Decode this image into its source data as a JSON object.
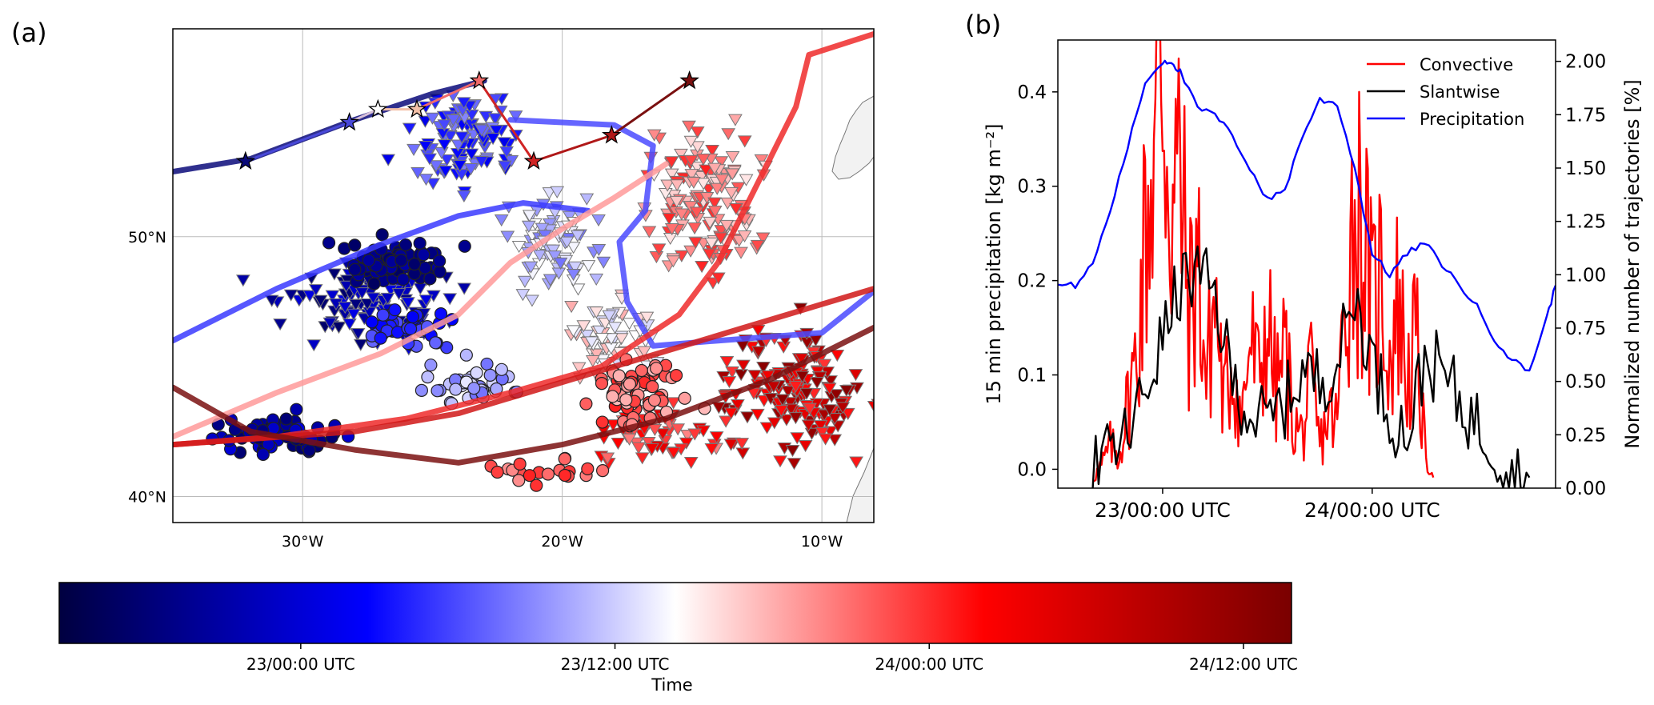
{
  "figure": {
    "panel_a_label": "(a)",
    "panel_b_label": "(b)"
  },
  "chart_data": [
    {
      "type": "scatter",
      "panel": "(a)",
      "description_kind": "map",
      "x_ticks": [
        "30°W",
        "20°W",
        "10°W"
      ],
      "x_tick_values": [
        -30,
        -20,
        -10
      ],
      "y_ticks": [
        "50°N",
        "40°N"
      ],
      "y_tick_values": [
        50,
        40
      ],
      "xlim": [
        -35,
        -8
      ],
      "ylim": [
        39,
        58
      ],
      "grid": true,
      "marker_kinds": [
        "triangle-down",
        "circle",
        "star"
      ],
      "color_encoding": "Time",
      "tracks": [
        {
          "color": "#0a0a7a",
          "points": [
            [
              -35,
              52.5
            ],
            [
              -32,
              53
            ],
            [
              -28,
              54.5
            ],
            [
              -25,
              55.5
            ],
            [
              -23,
              56
            ]
          ]
        },
        {
          "color": "#3a3aff",
          "points": [
            [
              -35,
              46
            ],
            [
              -31,
              48
            ],
            [
              -27,
              49.7
            ],
            [
              -24,
              50.8
            ],
            [
              -21.5,
              51.3
            ],
            [
              -19,
              51
            ]
          ]
        },
        {
          "color": "#4a4aff",
          "points": [
            [
              -22,
              54.5
            ],
            [
              -18,
              54.3
            ],
            [
              -16.5,
              53.5
            ],
            [
              -16.8,
              51
            ],
            [
              -17.8,
              49.8
            ],
            [
              -17.5,
              47.5
            ],
            [
              -16.5,
              45.8
            ],
            [
              -14,
              46
            ],
            [
              -10,
              46.3
            ],
            [
              -8,
              47.9
            ]
          ]
        },
        {
          "color": "#ff9a9a",
          "points": [
            [
              -35,
              42.3
            ],
            [
              -31,
              44
            ],
            [
              -27,
              45.5
            ],
            [
              -24,
              47
            ],
            [
              -22,
              49
            ],
            [
              -20,
              50.3
            ],
            [
              -18,
              51.5
            ],
            [
              -16,
              52.8
            ]
          ]
        },
        {
          "color": "#ee2a2a",
          "points": [
            [
              -35,
              42
            ],
            [
              -31,
              42.3
            ],
            [
              -26,
              43
            ],
            [
              -22,
              44
            ],
            [
              -18.5,
              45
            ],
            [
              -15.5,
              47
            ],
            [
              -14,
              49
            ],
            [
              -12.5,
              52
            ],
            [
              -11,
              55
            ],
            [
              -10.5,
              57
            ],
            [
              -8,
              57.8
            ]
          ]
        },
        {
          "color": "#d01818",
          "points": [
            [
              -35,
              42
            ],
            [
              -28,
              42.5
            ],
            [
              -24,
              43.2
            ],
            [
              -20,
              44.4
            ],
            [
              -17,
              45.3
            ],
            [
              -13,
              46.5
            ],
            [
              -8,
              48
            ]
          ]
        },
        {
          "color": "#7a1010",
          "points": [
            [
              -35,
              44.2
            ],
            [
              -32,
              42.5
            ],
            [
              -28,
              41.8
            ],
            [
              -24,
              41.3
            ],
            [
              -20,
              42
            ],
            [
              -16,
              43
            ],
            [
              -12,
              44.5
            ],
            [
              -8,
              46.5
            ]
          ]
        }
      ],
      "stars": [
        {
          "x": -32.2,
          "y": 52.9,
          "color": "#0a0a7a"
        },
        {
          "x": -28.2,
          "y": 54.4,
          "color": "#4848d8"
        },
        {
          "x": -27.1,
          "y": 54.9,
          "color": "#ffffff"
        },
        {
          "x": -25.6,
          "y": 54.9,
          "color": "#f3c0a8"
        },
        {
          "x": -23.2,
          "y": 56.0,
          "color": "#f06a6a"
        },
        {
          "x": -21.1,
          "y": 52.9,
          "color": "#d02424"
        },
        {
          "x": -18.1,
          "y": 53.9,
          "color": "#b01818"
        },
        {
          "x": -15.1,
          "y": 56.0,
          "color": "#7a1010"
        }
      ],
      "point_clusters": [
        {
          "kind": "triangle-down",
          "count": 120,
          "center": [
            -27.5,
            47.5
          ],
          "spread": [
            3.0,
            1.6
          ],
          "time": [
            0.05,
            0.22
          ]
        },
        {
          "kind": "triangle-down",
          "count": 110,
          "center": [
            -23.5,
            53.5
          ],
          "spread": [
            2.2,
            1.8
          ],
          "time": [
            0.22,
            0.38
          ]
        },
        {
          "kind": "triangle-down",
          "count": 80,
          "center": [
            -20.5,
            49.5
          ],
          "spread": [
            1.8,
            1.8
          ],
          "time": [
            0.36,
            0.5
          ]
        },
        {
          "kind": "triangle-down",
          "count": 70,
          "center": [
            -18,
            46
          ],
          "spread": [
            1.8,
            1.6
          ],
          "time": [
            0.45,
            0.58
          ]
        },
        {
          "kind": "triangle-down",
          "count": 150,
          "center": [
            -14.5,
            51.5
          ],
          "spread": [
            2.2,
            2.6
          ],
          "time": [
            0.52,
            0.72
          ]
        },
        {
          "kind": "triangle-down",
          "count": 170,
          "center": [
            -11,
            44
          ],
          "spread": [
            2.6,
            2.2
          ],
          "time": [
            0.7,
            0.98
          ]
        },
        {
          "kind": "triangle-down",
          "count": 60,
          "center": [
            -16,
            42.5
          ],
          "spread": [
            2.4,
            1.0
          ],
          "time": [
            0.62,
            0.82
          ]
        },
        {
          "kind": "circle",
          "count": 80,
          "center": [
            -26.5,
            49
          ],
          "spread": [
            2.0,
            0.9
          ],
          "time": [
            0.04,
            0.14
          ]
        },
        {
          "kind": "circle",
          "count": 70,
          "center": [
            -31,
            42.3
          ],
          "spread": [
            2.5,
            0.7
          ],
          "time": [
            0.05,
            0.2
          ]
        },
        {
          "kind": "circle",
          "count": 50,
          "center": [
            -26,
            46.5
          ],
          "spread": [
            1.5,
            0.7
          ],
          "time": [
            0.22,
            0.35
          ]
        },
        {
          "kind": "circle",
          "count": 40,
          "center": [
            -23.5,
            44.3
          ],
          "spread": [
            2.0,
            0.8
          ],
          "time": [
            0.36,
            0.48
          ]
        },
        {
          "kind": "circle",
          "count": 70,
          "center": [
            -17,
            44
          ],
          "spread": [
            1.8,
            1.2
          ],
          "time": [
            0.56,
            0.72
          ]
        },
        {
          "kind": "circle",
          "count": 20,
          "center": [
            -21,
            41
          ],
          "spread": [
            2.5,
            0.5
          ],
          "time": [
            0.6,
            0.72
          ]
        }
      ]
    },
    {
      "type": "line",
      "panel": "(b)",
      "x_ticks": [
        "23/00:00 UTC",
        "24/00:00 UTC"
      ],
      "x_tick_values": [
        0,
        24
      ],
      "xlim": [
        -12,
        45
      ],
      "ylabel_left": "15 min precipitation [kg m⁻²]",
      "ylabel_right": "Normalized number of trajectories [%]",
      "y_ticks_left": [
        "0.0",
        "0.1",
        "0.2",
        "0.3",
        "0.4"
      ],
      "y_tick_values_left": [
        0,
        0.1,
        0.2,
        0.3,
        0.4
      ],
      "ylim_left": [
        -0.02,
        0.455
      ],
      "y_ticks_right": [
        "0.00",
        "0.25",
        "0.50",
        "0.75",
        "1.00",
        "1.25",
        "1.50",
        "1.75",
        "2.00"
      ],
      "y_tick_values_right": [
        0,
        0.25,
        0.5,
        0.75,
        1,
        1.25,
        1.5,
        1.75,
        2
      ],
      "ylim_right": [
        0,
        2.1
      ],
      "legend_position": "top-right",
      "series": [
        {
          "name": "Convective",
          "color": "#ff0000",
          "axis": "right",
          "x": [
            -8,
            -7,
            -6,
            -5,
            -4,
            -3,
            -2,
            -1,
            0,
            1,
            2,
            3,
            4,
            5,
            6,
            7,
            8,
            9,
            10,
            11,
            12,
            13,
            14,
            15,
            16,
            17,
            18,
            19,
            20,
            21,
            22,
            23,
            24,
            25,
            26,
            27,
            28,
            29,
            30,
            31
          ],
          "y": [
            0.05,
            0.1,
            0.2,
            0.15,
            0.4,
            0.6,
            1.2,
            1.6,
            2.0,
            1.3,
            1.5,
            0.8,
            1.1,
            0.5,
            0.9,
            0.4,
            0.6,
            0.3,
            0.7,
            0.5,
            0.8,
            0.45,
            0.65,
            0.3,
            0.25,
            0.5,
            0.2,
            0.35,
            0.3,
            1.0,
            1.3,
            1.2,
            0.8,
            1.0,
            0.6,
            0.9,
            0.5,
            0.7,
            0.2,
            0.05
          ]
        },
        {
          "name": "Slantwise",
          "color": "#000000",
          "axis": "right",
          "x": [
            -8,
            -6,
            -4,
            -2,
            0,
            2,
            4,
            6,
            8,
            10,
            12,
            14,
            16,
            18,
            20,
            22,
            24,
            26,
            28,
            30,
            32,
            34,
            36,
            38,
            40,
            42
          ],
          "y": [
            0.1,
            0.15,
            0.25,
            0.45,
            0.7,
            0.95,
            1.0,
            0.9,
            0.5,
            0.35,
            0.3,
            0.4,
            0.55,
            0.5,
            0.6,
            0.9,
            0.6,
            0.35,
            0.25,
            0.6,
            0.55,
            0.4,
            0.3,
            0.2,
            0.05,
            0.05
          ]
        },
        {
          "name": "Precipitation",
          "color": "#0000ff",
          "axis": "right",
          "x": [
            -12,
            -10,
            -8,
            -6,
            -4,
            -2,
            0,
            1,
            2,
            4,
            6,
            8,
            10,
            12,
            14,
            16,
            18,
            20,
            22,
            24,
            26,
            28,
            30,
            32,
            34,
            36,
            38,
            40,
            42,
            44,
            45
          ],
          "y": [
            0.95,
            0.95,
            1.05,
            1.3,
            1.6,
            1.9,
            2.0,
            2.0,
            1.95,
            1.78,
            1.75,
            1.65,
            1.5,
            1.35,
            1.4,
            1.65,
            1.82,
            1.8,
            1.5,
            1.1,
            1.0,
            1.1,
            1.15,
            1.05,
            0.95,
            0.85,
            0.7,
            0.6,
            0.55,
            0.8,
            0.95
          ]
        }
      ]
    },
    {
      "type": "heatmap",
      "role": "colorbar",
      "label": "Time",
      "ticks": [
        "23/00:00 UTC",
        "23/12:00 UTC",
        "24/00:00 UTC",
        "24/12:00 UTC"
      ],
      "tick_fraction": [
        0.196,
        0.451,
        0.706,
        0.961
      ],
      "colors": [
        "#000040",
        "#0000ff",
        "#ffffff",
        "#ff0000",
        "#7a0000"
      ]
    }
  ]
}
